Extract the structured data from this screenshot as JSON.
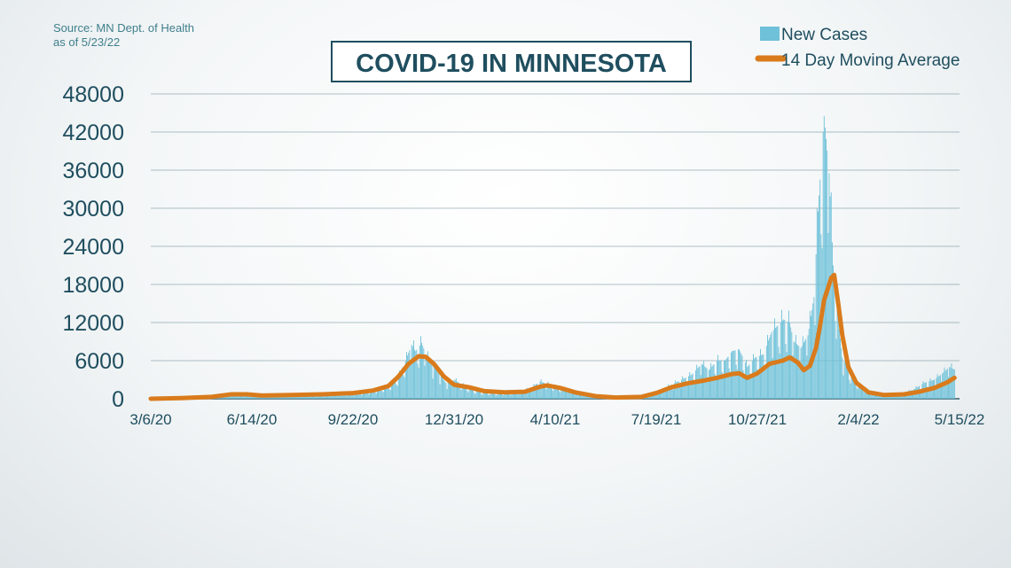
{
  "source": {
    "line1": "Source: MN Dept. of Health",
    "line2": "as of 5/23/22"
  },
  "chart_data": {
    "type": "bar",
    "title": "COVID-19 IN MINNESOTA",
    "xlabel": "",
    "ylabel": "",
    "ylim": [
      0,
      48000
    ],
    "yticks": [
      "0",
      "6000",
      "12000",
      "18000",
      "24000",
      "30000",
      "36000",
      "42000",
      "48000"
    ],
    "xticks": [
      "3/6/20",
      "6/14/20",
      "9/22/20",
      "12/31/20",
      "4/10/21",
      "7/19/21",
      "10/27/21",
      "2/4/22",
      "5/15/22"
    ],
    "x_range_days": [
      0,
      800
    ],
    "grid": true,
    "legend_position": "top-right",
    "colors": {
      "bars": "#6ec1d9",
      "line": "#d97b1c",
      "text": "#1f4e5f",
      "grid": "#1f4e5f"
    },
    "series": [
      {
        "name": "New Cases",
        "type": "bar",
        "points": [
          [
            0,
            0
          ],
          [
            20,
            50
          ],
          [
            40,
            100
          ],
          [
            60,
            300
          ],
          [
            80,
            650
          ],
          [
            100,
            500
          ],
          [
            120,
            400
          ],
          [
            140,
            600
          ],
          [
            160,
            700
          ],
          [
            180,
            650
          ],
          [
            200,
            800
          ],
          [
            215,
            1100
          ],
          [
            225,
            1500
          ],
          [
            235,
            2000
          ],
          [
            245,
            3500
          ],
          [
            252,
            6000
          ],
          [
            258,
            8500
          ],
          [
            262,
            7500
          ],
          [
            268,
            8800
          ],
          [
            272,
            7000
          ],
          [
            278,
            5500
          ],
          [
            285,
            4000
          ],
          [
            292,
            2500
          ],
          [
            300,
            3000
          ],
          [
            308,
            2200
          ],
          [
            318,
            1400
          ],
          [
            330,
            1000
          ],
          [
            345,
            900
          ],
          [
            360,
            1000
          ],
          [
            375,
            1600
          ],
          [
            385,
            2700
          ],
          [
            392,
            2400
          ],
          [
            402,
            1800
          ],
          [
            412,
            1500
          ],
          [
            422,
            1000
          ],
          [
            435,
            500
          ],
          [
            450,
            300
          ],
          [
            470,
            300
          ],
          [
            485,
            500
          ],
          [
            495,
            900
          ],
          [
            505,
            1500
          ],
          [
            515,
            2200
          ],
          [
            525,
            3000
          ],
          [
            535,
            3800
          ],
          [
            545,
            5500
          ],
          [
            552,
            4500
          ],
          [
            560,
            6000
          ],
          [
            568,
            6000
          ],
          [
            575,
            7500
          ],
          [
            582,
            7800
          ],
          [
            590,
            5000
          ],
          [
            598,
            6500
          ],
          [
            606,
            7000
          ],
          [
            614,
            10500
          ],
          [
            620,
            11500
          ],
          [
            626,
            12500
          ],
          [
            632,
            12000
          ],
          [
            636,
            9000
          ],
          [
            643,
            8000
          ],
          [
            650,
            10000
          ],
          [
            656,
            16000
          ],
          [
            660,
            29500
          ],
          [
            666,
            44500
          ],
          [
            671,
            35500
          ],
          [
            675,
            21000
          ],
          [
            679,
            14000
          ],
          [
            684,
            6500
          ],
          [
            690,
            4500
          ],
          [
            696,
            3000
          ],
          [
            702,
            2000
          ],
          [
            712,
            1200
          ],
          [
            722,
            800
          ],
          [
            735,
            700
          ],
          [
            745,
            900
          ],
          [
            755,
            1500
          ],
          [
            765,
            2500
          ],
          [
            775,
            3000
          ],
          [
            783,
            4000
          ],
          [
            790,
            5000
          ],
          [
            795,
            4600
          ]
        ]
      },
      {
        "name": "14 Day Moving Average",
        "type": "line",
        "points": [
          [
            0,
            0
          ],
          [
            30,
            100
          ],
          [
            60,
            300
          ],
          [
            80,
            700
          ],
          [
            95,
            700
          ],
          [
            110,
            500
          ],
          [
            140,
            600
          ],
          [
            170,
            700
          ],
          [
            200,
            900
          ],
          [
            220,
            1300
          ],
          [
            235,
            2000
          ],
          [
            245,
            3500
          ],
          [
            255,
            5500
          ],
          [
            265,
            6700
          ],
          [
            272,
            6600
          ],
          [
            280,
            5500
          ],
          [
            290,
            3500
          ],
          [
            300,
            2200
          ],
          [
            315,
            1800
          ],
          [
            330,
            1200
          ],
          [
            350,
            1000
          ],
          [
            370,
            1100
          ],
          [
            385,
            1900
          ],
          [
            392,
            2100
          ],
          [
            405,
            1700
          ],
          [
            420,
            1000
          ],
          [
            440,
            400
          ],
          [
            460,
            200
          ],
          [
            485,
            300
          ],
          [
            500,
            900
          ],
          [
            515,
            1800
          ],
          [
            530,
            2400
          ],
          [
            545,
            2800
          ],
          [
            560,
            3300
          ],
          [
            575,
            3900
          ],
          [
            582,
            4000
          ],
          [
            590,
            3300
          ],
          [
            600,
            4000
          ],
          [
            612,
            5500
          ],
          [
            625,
            6000
          ],
          [
            632,
            6500
          ],
          [
            640,
            5700
          ],
          [
            646,
            4500
          ],
          [
            652,
            5200
          ],
          [
            658,
            8000
          ],
          [
            662,
            11500
          ],
          [
            666,
            15500
          ],
          [
            670,
            17500
          ],
          [
            673,
            19000
          ],
          [
            676,
            19500
          ],
          [
            680,
            15000
          ],
          [
            684,
            10000
          ],
          [
            690,
            5000
          ],
          [
            698,
            2500
          ],
          [
            710,
            1000
          ],
          [
            725,
            600
          ],
          [
            745,
            700
          ],
          [
            760,
            1100
          ],
          [
            775,
            1700
          ],
          [
            788,
            2600
          ],
          [
            795,
            3300
          ]
        ]
      }
    ]
  }
}
